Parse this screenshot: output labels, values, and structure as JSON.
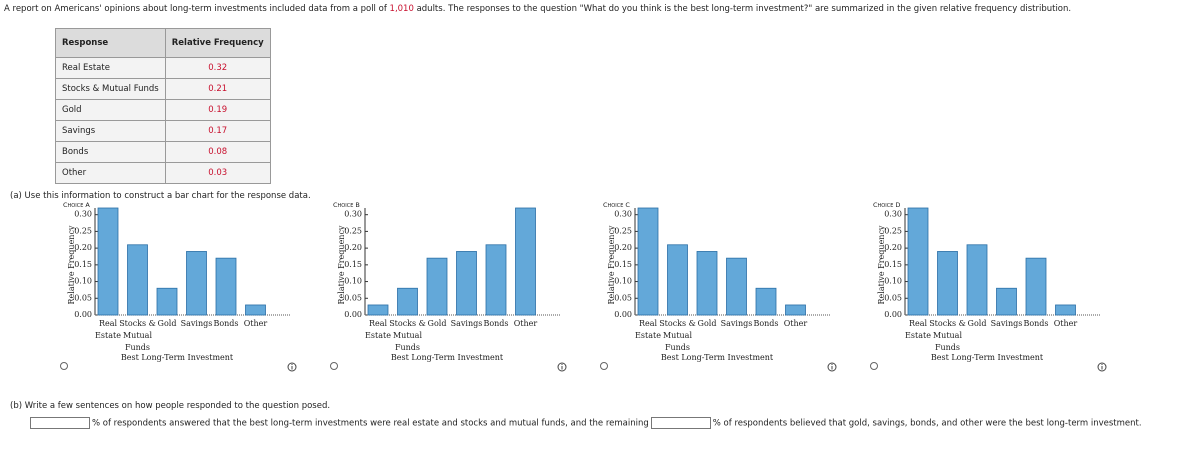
{
  "intro": [
    "A report on Americans' opinions about long-term investments included data from a poll of ",
    "1,010",
    " adults. The responses to the question \"What do you think is the best long-term investment?\" are summarized in the given relative frequency distribution."
  ],
  "table": {
    "header": [
      "Response",
      "Relative Frequency"
    ],
    "rows": [
      [
        "Real Estate",
        0.32
      ],
      [
        "Stocks & Mutual Funds",
        0.21
      ],
      [
        "Gold",
        0.19
      ],
      [
        "Savings",
        0.17
      ],
      [
        "Bonds",
        0.08
      ],
      [
        "Other",
        0.03
      ]
    ]
  },
  "part_a": "(a)  Use this information to construct a bar chart for the response data.",
  "chart_data": [
    {
      "type": "bar",
      "label": "Choice A",
      "categories": [
        [
          "Real",
          "Estate"
        ],
        [
          "Stocks &",
          "Mutual",
          "Funds"
        ],
        [
          "Gold"
        ],
        [
          "Savings"
        ],
        [
          "Bonds"
        ],
        [
          "Other"
        ]
      ],
      "values": [
        0.32,
        0.21,
        0.08,
        0.19,
        0.17,
        0.03
      ],
      "color": "#63a8d9",
      "ylim": [
        0,
        0.32
      ],
      "yticks": [
        {
          "value": 0,
          "label": "0.00"
        },
        {
          "value": 0.05,
          "label": "0.05"
        },
        {
          "value": 0.1,
          "label": "0.10"
        },
        {
          "value": 0.15,
          "label": "0.15"
        },
        {
          "value": 0.2,
          "label": "0.20"
        },
        {
          "value": 0.25,
          "label": "0.25"
        },
        {
          "value": 0.3,
          "label": "0.30"
        }
      ],
      "ylabel": "Relative Frequency",
      "xlabel": "Best Long-Term Investment"
    },
    {
      "type": "bar",
      "label": "Choice B",
      "categories": [
        [
          "Real",
          "Estate"
        ],
        [
          "Stocks &",
          "Mutual",
          "Funds"
        ],
        [
          "Gold"
        ],
        [
          "Savings"
        ],
        [
          "Bonds"
        ],
        [
          "Other"
        ]
      ],
      "values": [
        0.03,
        0.08,
        0.17,
        0.19,
        0.21,
        0.32
      ],
      "color": "#63a8d9",
      "ylim": [
        0,
        0.32
      ],
      "yticks": [
        {
          "value": 0,
          "label": "0.00"
        },
        {
          "value": 0.05,
          "label": "0.05"
        },
        {
          "value": 0.1,
          "label": "0.10"
        },
        {
          "value": 0.15,
          "label": "0.15"
        },
        {
          "value": 0.2,
          "label": "0.20"
        },
        {
          "value": 0.25,
          "label": "0.25"
        },
        {
          "value": 0.3,
          "label": "0.30"
        }
      ],
      "ylabel": "Relative Frequency",
      "xlabel": "Best Long-Term Investment"
    },
    {
      "type": "bar",
      "label": "Choice C",
      "categories": [
        [
          "Real",
          "Estate"
        ],
        [
          "Stocks &",
          "Mutual",
          "Funds"
        ],
        [
          "Gold"
        ],
        [
          "Savings"
        ],
        [
          "Bonds"
        ],
        [
          "Other"
        ]
      ],
      "values": [
        0.32,
        0.21,
        0.19,
        0.17,
        0.08,
        0.03
      ],
      "color": "#63a8d9",
      "ylim": [
        0,
        0.32
      ],
      "yticks": [
        {
          "value": 0,
          "label": "0.00"
        },
        {
          "value": 0.05,
          "label": "0.05"
        },
        {
          "value": 0.1,
          "label": "0.10"
        },
        {
          "value": 0.15,
          "label": "0.15"
        },
        {
          "value": 0.2,
          "label": "0.20"
        },
        {
          "value": 0.25,
          "label": "0.25"
        },
        {
          "value": 0.3,
          "label": "0.30"
        }
      ],
      "ylabel": "Relative Frequency",
      "xlabel": "Best Long-Term Investment"
    },
    {
      "type": "bar",
      "label": "Choice D",
      "categories": [
        [
          "Real",
          "Estate"
        ],
        [
          "Stocks &",
          "Mutual",
          "Funds"
        ],
        [
          "Gold"
        ],
        [
          "Savings"
        ],
        [
          "Bonds"
        ],
        [
          "Other"
        ]
      ],
      "values": [
        0.32,
        0.19,
        0.21,
        0.08,
        0.17,
        0.03
      ],
      "color": "#63a8d9",
      "ylim": [
        0,
        0.32
      ],
      "yticks": [
        {
          "value": 0,
          "label": "0.00"
        },
        {
          "value": 0.05,
          "label": "0.05"
        },
        {
          "value": 0.1,
          "label": "0.10"
        },
        {
          "value": 0.15,
          "label": "0.15"
        },
        {
          "value": 0.2,
          "label": "0.20"
        },
        {
          "value": 0.25,
          "label": "0.25"
        },
        {
          "value": 0.3,
          "label": "0.30"
        }
      ],
      "ylabel": "Relative Frequency",
      "xlabel": "Best Long-Term Investment"
    }
  ],
  "part_b": {
    "prompt": "(b)  Write a few sentences on how people responded to the question posed.",
    "sentence": [
      "% of respondents answered that the best long-term investments were real estate and stocks and mutual funds, and the remaining",
      "% of respondents believed that gold, savings, bonds, and other were the best long-term investment."
    ]
  }
}
